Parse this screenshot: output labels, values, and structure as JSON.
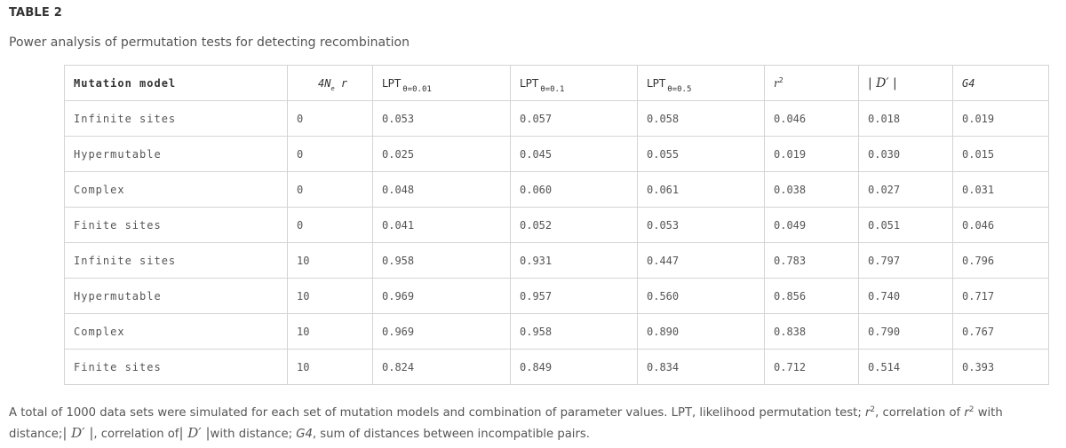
{
  "label": "TABLE 2",
  "caption": "Power analysis of permutation tests for detecting recombination",
  "table": {
    "headers": {
      "model": "Mutation model",
      "param_prefix": "4N",
      "param_sub": "e",
      "param_suffix": "r",
      "lpt_001": "LPT",
      "lpt_001_sub": "θ=0.01",
      "lpt_01": "LPT",
      "lpt_01_sub": "θ=0.1",
      "lpt_05": "LPT",
      "lpt_05_sub": "θ=0.5",
      "r2_base": "r",
      "r2_exp": "2",
      "dprime": "| D′ |",
      "g4": "G4"
    },
    "rows": [
      [
        "Infinite sites",
        "0",
        "0.053",
        "0.057",
        "0.058",
        "0.046",
        "0.018",
        "0.019"
      ],
      [
        "Hypermutable",
        "0",
        "0.025",
        "0.045",
        "0.055",
        "0.019",
        "0.030",
        "0.015"
      ],
      [
        "Complex",
        "0",
        "0.048",
        "0.060",
        "0.061",
        "0.038",
        "0.027",
        "0.031"
      ],
      [
        "Finite sites",
        "0",
        "0.041",
        "0.052",
        "0.053",
        "0.049",
        "0.051",
        "0.046"
      ],
      [
        "Infinite sites",
        "10",
        "0.958",
        "0.931",
        "0.447",
        "0.783",
        "0.797",
        "0.796"
      ],
      [
        "Hypermutable",
        "10",
        "0.969",
        "0.957",
        "0.560",
        "0.856",
        "0.740",
        "0.717"
      ],
      [
        "Complex",
        "10",
        "0.969",
        "0.958",
        "0.890",
        "0.838",
        "0.790",
        "0.767"
      ],
      [
        "Finite sites",
        "10",
        "0.824",
        "0.849",
        "0.834",
        "0.712",
        "0.514",
        "0.393"
      ]
    ]
  },
  "footnote": {
    "part1": "A total of 1000 data sets were simulated for each set of mutation models and combination of parameter values. LPT, likelihood permutation test; ",
    "r": "r",
    "sq": "2",
    "part2": ", correlation of ",
    "part3": " with distance;",
    "dprime": "| D′ |",
    "part4": ", correlation of",
    "part5": "with distance; ",
    "g4": "G4",
    "part6": ", sum of distances between incompatible pairs."
  }
}
